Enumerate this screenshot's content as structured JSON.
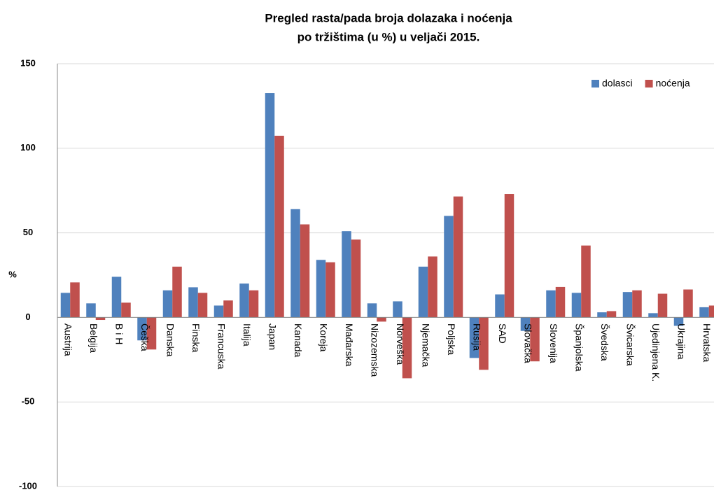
{
  "chart_data": {
    "type": "bar",
    "title": [
      "Pregled rasta/pada broja dolazaka i noćenja",
      "po tržištima (u %) u veljači 2015."
    ],
    "y_label": "%",
    "categories": [
      "Austrija",
      "Belgija",
      "B i H",
      "Češka",
      "Danska",
      "Finska",
      "Francuska",
      "Italija",
      "Japan",
      "Kanada",
      "Koreja",
      "Mađarska",
      "Nizozemska",
      "Norveška",
      "Njemačka",
      "Poljska",
      "Rusija",
      "SAD",
      "Slovačka",
      "Slovenija",
      "Španjolska",
      "Švedska",
      "Švicarska",
      "Ujedinjena K.",
      "Ukrajina",
      "Hrvatska"
    ],
    "series": [
      {
        "name": "dolasci",
        "color": "#4f81bd",
        "values": [
          14.5,
          8.3,
          24,
          -13.6,
          16,
          17.8,
          7,
          20,
          132.6,
          64,
          34,
          51,
          8.3,
          9.5,
          30,
          60,
          -24,
          13.6,
          -8,
          16,
          14.5,
          3,
          15,
          2.5,
          -5,
          6
        ]
      },
      {
        "name": "noćenja",
        "color": "#c0504d",
        "values": [
          20.7,
          -1.5,
          8.7,
          -19,
          30,
          14.5,
          10,
          16,
          107.4,
          55,
          32.6,
          46,
          -2.5,
          -36,
          36,
          71.5,
          -31,
          73,
          -26,
          18,
          42.5,
          3.7,
          16,
          14,
          16.5,
          7
        ]
      }
    ],
    "ylim": [
      -100,
      150
    ],
    "yticks": [
      -100,
      -50,
      0,
      50,
      100,
      150
    ],
    "grid": true,
    "legend": "top-right"
  }
}
